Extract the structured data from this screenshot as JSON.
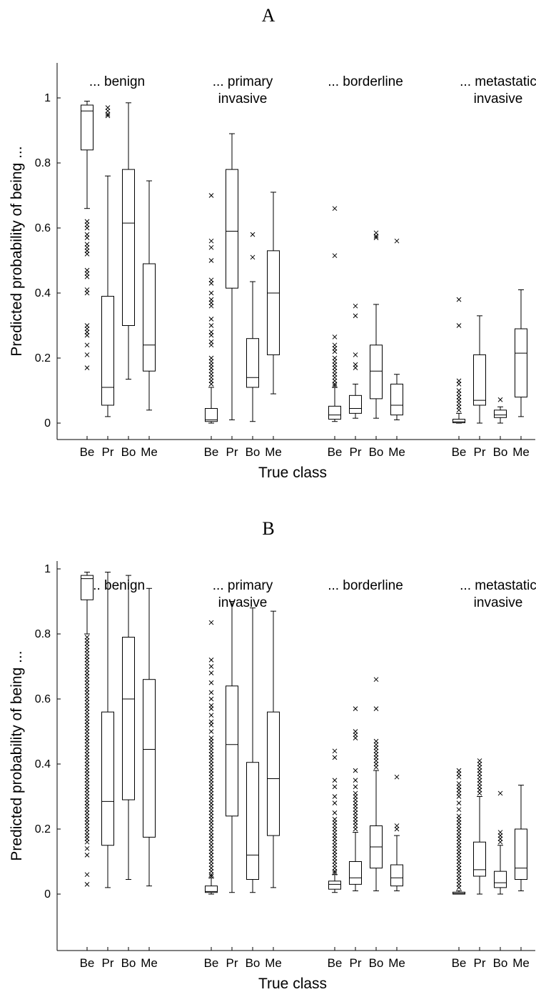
{
  "chart_data": [
    {
      "type": "box",
      "panel_label": "A",
      "ylabel": "Predicted probability of being ...",
      "xlabel": "True class",
      "ylim": [
        -0.05,
        1.1
      ],
      "yticks": [
        0,
        0.2,
        0.4,
        0.6,
        0.8,
        1
      ],
      "ytick_labels": [
        "0",
        "0.2",
        "0.4",
        "0.6",
        "0.8",
        "1"
      ],
      "categories": [
        "Be",
        "Pr",
        "Bo",
        "Me"
      ],
      "groups": [
        {
          "title": [
            "... benign"
          ],
          "boxes": [
            {
              "cat": "Be",
              "min": 0.66,
              "q1": 0.84,
              "median": 0.96,
              "q3": 0.978,
              "max": 0.99,
              "outliers": [
                0.62,
                0.61,
                0.6,
                0.58,
                0.57,
                0.55,
                0.54,
                0.53,
                0.52,
                0.47,
                0.46,
                0.45,
                0.41,
                0.4,
                0.3,
                0.29,
                0.28,
                0.27,
                0.24,
                0.21,
                0.17
              ]
            },
            {
              "cat": "Pr",
              "min": 0.02,
              "q1": 0.055,
              "median": 0.11,
              "q3": 0.39,
              "max": 0.76,
              "outliers": [
                0.97,
                0.96,
                0.95,
                0.945
              ]
            },
            {
              "cat": "Bo",
              "min": 0.135,
              "q1": 0.3,
              "median": 0.615,
              "q3": 0.78,
              "max": 0.985,
              "outliers": []
            },
            {
              "cat": "Me",
              "min": 0.04,
              "q1": 0.16,
              "median": 0.24,
              "q3": 0.49,
              "max": 0.745,
              "outliers": []
            }
          ]
        },
        {
          "title": [
            "... primary",
            "invasive"
          ],
          "boxes": [
            {
              "cat": "Be",
              "min": 0.0,
              "q1": 0.005,
              "median": 0.01,
              "q3": 0.045,
              "max": 0.11,
              "outliers": [
                0.7,
                0.56,
                0.54,
                0.5,
                0.44,
                0.43,
                0.4,
                0.38,
                0.37,
                0.36,
                0.32,
                0.3,
                0.28,
                0.27,
                0.25,
                0.24,
                0.2,
                0.19,
                0.18,
                0.17,
                0.16,
                0.15,
                0.14,
                0.13,
                0.12
              ]
            },
            {
              "cat": "Pr",
              "min": 0.01,
              "q1": 0.415,
              "median": 0.59,
              "q3": 0.78,
              "max": 0.89,
              "outliers": []
            },
            {
              "cat": "Bo",
              "min": 0.005,
              "q1": 0.11,
              "median": 0.14,
              "q3": 0.26,
              "max": 0.435,
              "outliers": [
                0.58,
                0.51
              ]
            },
            {
              "cat": "Me",
              "min": 0.09,
              "q1": 0.21,
              "median": 0.4,
              "q3": 0.53,
              "max": 0.71,
              "outliers": []
            }
          ]
        },
        {
          "title": [
            "... borderline"
          ],
          "boxes": [
            {
              "cat": "Be",
              "min": 0.005,
              "q1": 0.012,
              "median": 0.025,
              "q3": 0.052,
              "max": 0.11,
              "outliers": [
                0.66,
                0.515,
                0.265,
                0.24,
                0.23,
                0.22,
                0.2,
                0.19,
                0.18,
                0.17,
                0.16,
                0.15,
                0.14,
                0.13,
                0.12,
                0.115
              ]
            },
            {
              "cat": "Pr",
              "min": 0.015,
              "q1": 0.03,
              "median": 0.045,
              "q3": 0.085,
              "max": 0.12,
              "outliers": [
                0.36,
                0.33,
                0.21,
                0.18,
                0.17
              ]
            },
            {
              "cat": "Bo",
              "min": 0.015,
              "q1": 0.075,
              "median": 0.16,
              "q3": 0.24,
              "max": 0.365,
              "outliers": [
                0.585,
                0.575,
                0.57
              ]
            },
            {
              "cat": "Me",
              "min": 0.01,
              "q1": 0.025,
              "median": 0.055,
              "q3": 0.12,
              "max": 0.15,
              "outliers": [
                0.56
              ]
            }
          ]
        },
        {
          "title": [
            "... metastatic",
            "invasive"
          ],
          "boxes": [
            {
              "cat": "Be",
              "min": 0.0,
              "q1": 0.001,
              "median": 0.004,
              "q3": 0.012,
              "max": 0.03,
              "outliers": [
                0.38,
                0.3,
                0.13,
                0.12,
                0.1,
                0.09,
                0.08,
                0.07,
                0.06,
                0.05,
                0.04
              ]
            },
            {
              "cat": "Pr",
              "min": 0.0,
              "q1": 0.055,
              "median": 0.07,
              "q3": 0.21,
              "max": 0.33,
              "outliers": []
            },
            {
              "cat": "Bo",
              "min": 0.0,
              "q1": 0.017,
              "median": 0.025,
              "q3": 0.04,
              "max": 0.05,
              "outliers": [
                0.072
              ]
            },
            {
              "cat": "Me",
              "min": 0.02,
              "q1": 0.08,
              "median": 0.215,
              "q3": 0.29,
              "max": 0.41,
              "outliers": []
            }
          ]
        }
      ]
    },
    {
      "type": "box",
      "panel_label": "B",
      "ylabel": "Predicted probability of being ...",
      "xlabel": "True class",
      "ylim": [
        -0.05,
        1.1
      ],
      "yticks": [
        0,
        0.2,
        0.4,
        0.6,
        0.8,
        1
      ],
      "ytick_labels": [
        "0",
        "0.2",
        "0.4",
        "0.6",
        "0.8",
        "1"
      ],
      "categories": [
        "Be",
        "Pr",
        "Bo",
        "Me"
      ],
      "groups": [
        {
          "title": [
            "... benign"
          ],
          "boxes": [
            {
              "cat": "Be",
              "min": 0.8,
              "q1": 0.905,
              "median": 0.97,
              "q3": 0.98,
              "max": 0.99,
              "outliers": [
                0.79,
                0.78,
                0.77,
                0.76,
                0.75,
                0.74,
                0.73,
                0.72,
                0.71,
                0.7,
                0.69,
                0.68,
                0.67,
                0.66,
                0.65,
                0.64,
                0.63,
                0.62,
                0.61,
                0.6,
                0.59,
                0.58,
                0.57,
                0.56,
                0.55,
                0.54,
                0.53,
                0.52,
                0.51,
                0.5,
                0.49,
                0.48,
                0.47,
                0.46,
                0.45,
                0.44,
                0.43,
                0.42,
                0.41,
                0.4,
                0.39,
                0.38,
                0.37,
                0.36,
                0.35,
                0.34,
                0.33,
                0.32,
                0.31,
                0.3,
                0.29,
                0.28,
                0.27,
                0.26,
                0.25,
                0.24,
                0.23,
                0.22,
                0.21,
                0.2,
                0.19,
                0.18,
                0.17,
                0.16,
                0.14,
                0.12,
                0.06,
                0.03
              ]
            },
            {
              "cat": "Pr",
              "min": 0.02,
              "q1": 0.15,
              "median": 0.285,
              "q3": 0.56,
              "max": 0.99,
              "outliers": []
            },
            {
              "cat": "Bo",
              "min": 0.045,
              "q1": 0.29,
              "median": 0.6,
              "q3": 0.79,
              "max": 0.98,
              "outliers": []
            },
            {
              "cat": "Me",
              "min": 0.025,
              "q1": 0.175,
              "median": 0.445,
              "q3": 0.66,
              "max": 0.94,
              "outliers": []
            }
          ]
        },
        {
          "title": [
            "... primary",
            "invasive"
          ],
          "boxes": [
            {
              "cat": "Be",
              "min": 0.0,
              "q1": 0.005,
              "median": 0.008,
              "q3": 0.025,
              "max": 0.05,
              "outliers": [
                0.835,
                0.72,
                0.7,
                0.68,
                0.65,
                0.62,
                0.6,
                0.58,
                0.57,
                0.55,
                0.53,
                0.52,
                0.5,
                0.48,
                0.47,
                0.46,
                0.45,
                0.44,
                0.43,
                0.42,
                0.41,
                0.4,
                0.39,
                0.38,
                0.37,
                0.36,
                0.35,
                0.34,
                0.33,
                0.32,
                0.31,
                0.3,
                0.29,
                0.28,
                0.27,
                0.26,
                0.25,
                0.24,
                0.23,
                0.22,
                0.21,
                0.2,
                0.19,
                0.18,
                0.17,
                0.16,
                0.15,
                0.14,
                0.13,
                0.12,
                0.11,
                0.1,
                0.09,
                0.08,
                0.07,
                0.06,
                0.055
              ]
            },
            {
              "cat": "Pr",
              "min": 0.005,
              "q1": 0.24,
              "median": 0.46,
              "q3": 0.64,
              "max": 0.9,
              "outliers": []
            },
            {
              "cat": "Bo",
              "min": 0.005,
              "q1": 0.045,
              "median": 0.12,
              "q3": 0.405,
              "max": 0.88,
              "outliers": []
            },
            {
              "cat": "Me",
              "min": 0.02,
              "q1": 0.18,
              "median": 0.355,
              "q3": 0.56,
              "max": 0.87,
              "outliers": []
            }
          ]
        },
        {
          "title": [
            "... borderline"
          ],
          "boxes": [
            {
              "cat": "Be",
              "min": 0.005,
              "q1": 0.015,
              "median": 0.03,
              "q3": 0.04,
              "max": 0.06,
              "outliers": [
                0.44,
                0.42,
                0.35,
                0.33,
                0.3,
                0.28,
                0.25,
                0.23,
                0.22,
                0.21,
                0.2,
                0.19,
                0.18,
                0.17,
                0.16,
                0.15,
                0.14,
                0.13,
                0.12,
                0.11,
                0.1,
                0.09,
                0.08,
                0.07,
                0.065
              ]
            },
            {
              "cat": "Pr",
              "min": 0.01,
              "q1": 0.03,
              "median": 0.05,
              "q3": 0.1,
              "max": 0.19,
              "outliers": [
                0.57,
                0.5,
                0.49,
                0.48,
                0.38,
                0.35,
                0.33,
                0.31,
                0.3,
                0.29,
                0.28,
                0.27,
                0.26,
                0.25,
                0.24,
                0.23,
                0.22,
                0.21,
                0.2
              ]
            },
            {
              "cat": "Bo",
              "min": 0.01,
              "q1": 0.08,
              "median": 0.145,
              "q3": 0.21,
              "max": 0.38,
              "outliers": [
                0.66,
                0.57,
                0.47,
                0.46,
                0.45,
                0.44,
                0.43,
                0.42,
                0.41,
                0.4,
                0.39
              ]
            },
            {
              "cat": "Me",
              "min": 0.01,
              "q1": 0.025,
              "median": 0.05,
              "q3": 0.09,
              "max": 0.18,
              "outliers": [
                0.36,
                0.21,
                0.2
              ]
            }
          ]
        },
        {
          "title": [
            "... metastatic",
            "invasive"
          ],
          "boxes": [
            {
              "cat": "Be",
              "min": 0.0,
              "q1": 0.0,
              "median": 0.002,
              "q3": 0.006,
              "max": 0.01,
              "outliers": [
                0.38,
                0.37,
                0.36,
                0.34,
                0.33,
                0.32,
                0.31,
                0.3,
                0.28,
                0.26,
                0.24,
                0.23,
                0.22,
                0.21,
                0.2,
                0.19,
                0.18,
                0.17,
                0.16,
                0.15,
                0.14,
                0.13,
                0.12,
                0.11,
                0.1,
                0.09,
                0.08,
                0.07,
                0.06,
                0.05,
                0.04,
                0.03,
                0.02
              ]
            },
            {
              "cat": "Pr",
              "min": 0.0,
              "q1": 0.055,
              "median": 0.075,
              "q3": 0.16,
              "max": 0.3,
              "outliers": [
                0.41,
                0.4,
                0.39,
                0.38,
                0.37,
                0.36,
                0.35,
                0.34,
                0.33,
                0.32,
                0.31
              ]
            },
            {
              "cat": "Bo",
              "min": 0.0,
              "q1": 0.02,
              "median": 0.035,
              "q3": 0.07,
              "max": 0.15,
              "outliers": [
                0.31,
                0.19,
                0.18,
                0.17,
                0.16
              ]
            },
            {
              "cat": "Me",
              "min": 0.01,
              "q1": 0.045,
              "median": 0.08,
              "q3": 0.2,
              "max": 0.335,
              "outliers": []
            }
          ]
        }
      ]
    }
  ]
}
